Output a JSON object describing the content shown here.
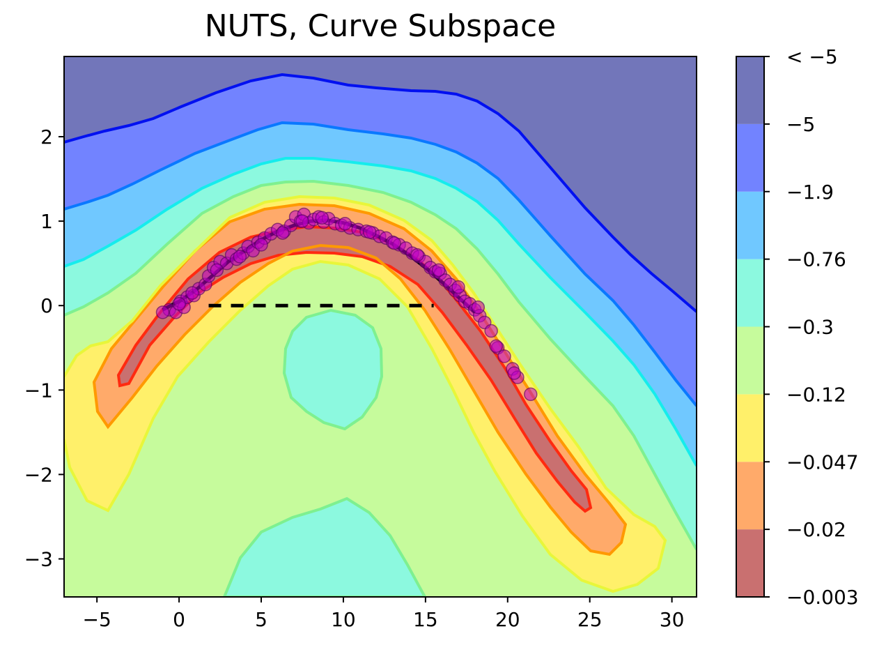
{
  "chart_data": {
    "type": "contour",
    "title": "NUTS, Curve Subspace",
    "xlabel": "",
    "ylabel": "",
    "xlim": [
      -7,
      31.5
    ],
    "ylim": [
      -3.45,
      2.95
    ],
    "x_ticks": [
      -5,
      0,
      5,
      10,
      15,
      20,
      25,
      30
    ],
    "x_tick_labels": [
      "−5",
      "0",
      "5",
      "10",
      "15",
      "20",
      "25",
      "30"
    ],
    "y_ticks": [
      2,
      1,
      0,
      -1,
      -2,
      -3
    ],
    "y_tick_labels": [
      "2",
      "1",
      "0",
      "−1",
      "−2",
      "−3"
    ],
    "grid": false,
    "colorbar": {
      "labels": [
        "< −5",
        "−5",
        "−1.9",
        "−0.76",
        "−0.3",
        "−0.12",
        "−0.047",
        "−0.02",
        "−0.003"
      ],
      "colors": [
        "#c97070",
        "#ffaa6a",
        "#fff06a",
        "#c6fb9c",
        "#8cf9df",
        "#70c8ff",
        "#7283ff",
        "#7276ba"
      ]
    },
    "contour_line_colors": [
      "#ff2a10",
      "#ff9900",
      "#e8f63a",
      "#7ef090",
      "#16ecec",
      "#0a78ff",
      "#0010f0"
    ],
    "curve": {
      "x": [
        -1,
        0,
        1,
        2,
        3,
        4,
        5,
        6,
        7,
        8,
        9,
        10,
        11,
        12,
        13,
        14,
        15,
        16,
        17,
        18
      ],
      "y": [
        -0.05,
        0.05,
        0.18,
        0.35,
        0.52,
        0.65,
        0.78,
        0.88,
        0.95,
        1.0,
        1.01,
        0.98,
        0.92,
        0.83,
        0.73,
        0.6,
        0.45,
        0.28,
        0.1,
        -0.08
      ]
    },
    "baseline": {
      "x": [
        1.8,
        15.5
      ],
      "y": [
        0,
        0
      ],
      "style": "dashed"
    },
    "samples": {
      "x": [
        -0.6,
        -0.2,
        0.1,
        0.3,
        0.5,
        0.9,
        1.2,
        1.6,
        1.8,
        2.1,
        2.5,
        2.9,
        3.2,
        3.5,
        3.9,
        4.2,
        4.5,
        4.8,
        5.2,
        5.6,
        6.0,
        6.4,
        6.8,
        7.1,
        7.4,
        7.6,
        7.9,
        8.2,
        8.5,
        8.8,
        9.1,
        9.5,
        9.9,
        10.4,
        10.9,
        11.4,
        11.8,
        12.2,
        12.6,
        13.0,
        13.4,
        13.8,
        14.2,
        14.6,
        15.0,
        15.3,
        15.6,
        15.9,
        16.2,
        16.5,
        16.8,
        17.1,
        17.4,
        17.7,
        18.0,
        18.3,
        18.6,
        19.0,
        19.4,
        19.8,
        20.3,
        20.6,
        21.4,
        -1.0,
        0.0,
        0.8,
        2.3,
        3.7,
        5.0,
        6.3,
        7.5,
        8.7,
        10.1,
        11.6,
        13.1,
        14.5,
        15.8,
        17.0,
        18.2,
        19.3,
        20.4
      ],
      "y": [
        -0.05,
        -0.08,
        0.05,
        -0.02,
        0.1,
        0.12,
        0.2,
        0.25,
        0.35,
        0.45,
        0.52,
        0.5,
        0.6,
        0.55,
        0.62,
        0.7,
        0.65,
        0.75,
        0.8,
        0.85,
        0.9,
        0.88,
        0.95,
        1.05,
        1.0,
        1.08,
        0.98,
        1.02,
        1.05,
        0.99,
        1.03,
        0.97,
        0.95,
        0.92,
        0.9,
        0.88,
        0.86,
        0.82,
        0.8,
        0.75,
        0.72,
        0.68,
        0.62,
        0.58,
        0.52,
        0.45,
        0.4,
        0.38,
        0.3,
        0.25,
        0.18,
        0.12,
        0.05,
        0.02,
        -0.05,
        -0.12,
        -0.2,
        -0.3,
        -0.5,
        -0.6,
        -0.75,
        -0.85,
        -1.05,
        -0.08,
        0.02,
        0.15,
        0.42,
        0.58,
        0.72,
        0.86,
        1.0,
        1.04,
        0.97,
        0.87,
        0.74,
        0.6,
        0.42,
        0.22,
        -0.02,
        -0.48,
        -0.8
      ]
    }
  }
}
